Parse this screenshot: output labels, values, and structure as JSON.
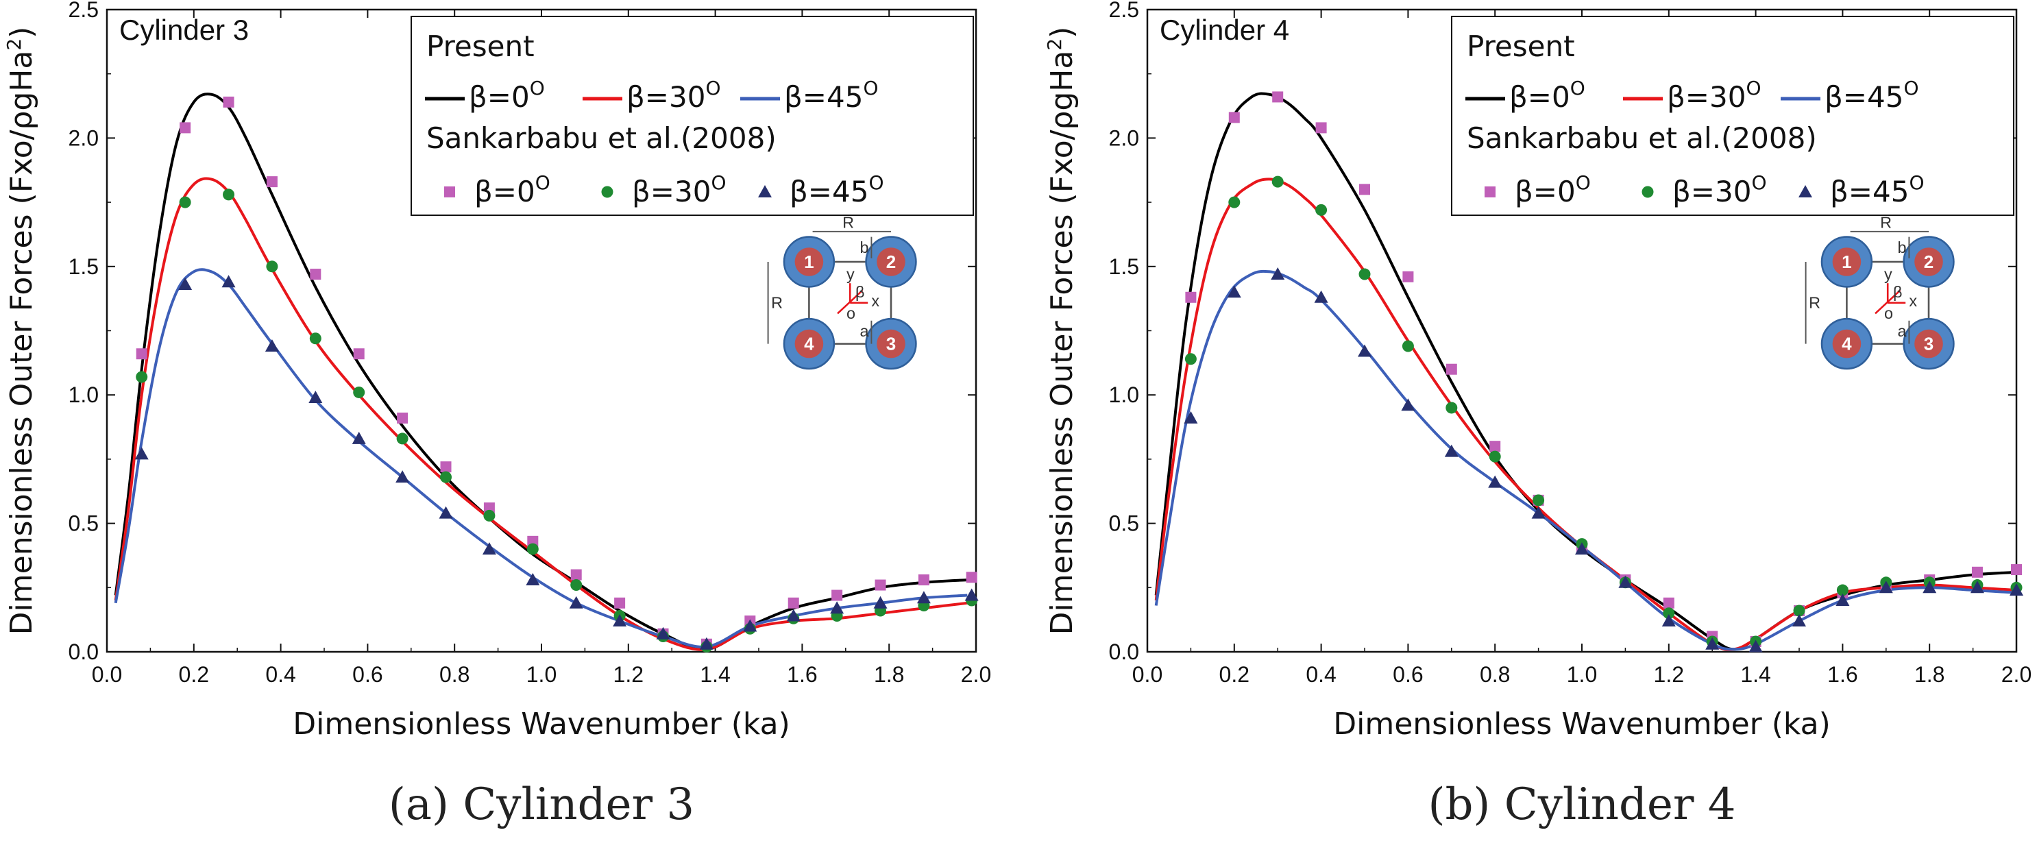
{
  "colors": {
    "black_line": "#000000",
    "red_line": "#e8161b",
    "blue_line": "#3d5fb8",
    "marker_square": "#c05fb8",
    "marker_circle": "#1f8a32",
    "marker_triangle": "#27306e",
    "cyl_outer": "#4f86c6",
    "cyl_inner": "#c0504d"
  },
  "chart_data": [
    {
      "type": "line",
      "panel_label": "Cylinder 3",
      "caption": "(a)  Cylinder  3",
      "xlabel": "Dimensionless Wavenumber (ka)",
      "ylabel_main": "Dimensionless Outer Forces (Fxo/ρgHa",
      "ylabel_sup": "2",
      "ylabel_end": ")",
      "xlim": [
        0,
        2.0
      ],
      "ylim": [
        0,
        2.5
      ],
      "xticks": [
        "0.0",
        "0.2",
        "0.4",
        "0.6",
        "0.8",
        "1.0",
        "1.2",
        "1.4",
        "1.6",
        "1.8",
        "2.0"
      ],
      "yticks": [
        "0.0",
        "0.5",
        "1.0",
        "1.5",
        "2.0",
        "2.5"
      ],
      "legend": {
        "title_present": "Present",
        "title_ref": "Sankarbabu et al.(2008)",
        "entries": [
          "β=0",
          "β=30",
          "β=45"
        ],
        "degree": "O"
      },
      "series": [
        {
          "name": "Present β=0°",
          "style": "line",
          "color": "#000000",
          "x": [
            0.02,
            0.05,
            0.08,
            0.12,
            0.16,
            0.2,
            0.24,
            0.28,
            0.32,
            0.38,
            0.48,
            0.58,
            0.68,
            0.78,
            0.88,
            0.98,
            1.08,
            1.18,
            1.28,
            1.38,
            1.48,
            1.58,
            1.68,
            1.78,
            1.88,
            1.98
          ],
          "values": [
            0.22,
            0.62,
            1.1,
            1.62,
            1.98,
            2.14,
            2.17,
            2.12,
            2.0,
            1.78,
            1.42,
            1.12,
            0.88,
            0.68,
            0.52,
            0.38,
            0.27,
            0.16,
            0.07,
            0.01,
            0.1,
            0.17,
            0.21,
            0.25,
            0.27,
            0.28
          ]
        },
        {
          "name": "Present β=30°",
          "style": "line",
          "color": "#e8161b",
          "x": [
            0.02,
            0.05,
            0.08,
            0.12,
            0.16,
            0.2,
            0.24,
            0.28,
            0.32,
            0.38,
            0.48,
            0.58,
            0.68,
            0.78,
            0.88,
            0.98,
            1.08,
            1.18,
            1.28,
            1.38,
            1.48,
            1.58,
            1.68,
            1.78,
            1.88,
            1.98
          ],
          "values": [
            0.2,
            0.56,
            1.0,
            1.42,
            1.7,
            1.82,
            1.84,
            1.79,
            1.68,
            1.49,
            1.21,
            1.0,
            0.82,
            0.66,
            0.52,
            0.39,
            0.26,
            0.14,
            0.05,
            0.01,
            0.09,
            0.12,
            0.13,
            0.15,
            0.17,
            0.19
          ]
        },
        {
          "name": "Present β=45°",
          "style": "line",
          "color": "#3d5fb8",
          "x": [
            0.02,
            0.05,
            0.08,
            0.12,
            0.16,
            0.2,
            0.24,
            0.28,
            0.32,
            0.38,
            0.48,
            0.58,
            0.68,
            0.78,
            0.88,
            0.98,
            1.08,
            1.18,
            1.28,
            1.38,
            1.48,
            1.58,
            1.68,
            1.78,
            1.88,
            1.98
          ],
          "values": [
            0.19,
            0.48,
            0.82,
            1.18,
            1.4,
            1.48,
            1.48,
            1.43,
            1.34,
            1.2,
            0.98,
            0.82,
            0.68,
            0.54,
            0.41,
            0.29,
            0.19,
            0.12,
            0.06,
            0.02,
            0.1,
            0.14,
            0.17,
            0.19,
            0.21,
            0.22
          ]
        },
        {
          "name": "Sankarbabu β=0°",
          "style": "square",
          "color": "#c05fb8",
          "x": [
            0.08,
            0.18,
            0.28,
            0.38,
            0.48,
            0.58,
            0.68,
            0.78,
            0.88,
            0.98,
            1.08,
            1.18,
            1.28,
            1.38,
            1.48,
            1.58,
            1.68,
            1.78,
            1.88,
            1.99
          ],
          "values": [
            1.16,
            2.04,
            2.14,
            1.83,
            1.47,
            1.16,
            0.91,
            0.72,
            0.56,
            0.43,
            0.3,
            0.19,
            0.07,
            0.03,
            0.12,
            0.19,
            0.22,
            0.26,
            0.28,
            0.29
          ]
        },
        {
          "name": "Sankarbabu β=30°",
          "style": "circle",
          "color": "#1f8a32",
          "x": [
            0.08,
            0.18,
            0.28,
            0.38,
            0.48,
            0.58,
            0.68,
            0.78,
            0.88,
            0.98,
            1.08,
            1.18,
            1.28,
            1.38,
            1.48,
            1.58,
            1.68,
            1.78,
            1.88,
            1.99
          ],
          "values": [
            1.07,
            1.75,
            1.78,
            1.5,
            1.22,
            1.01,
            0.83,
            0.68,
            0.53,
            0.4,
            0.26,
            0.14,
            0.06,
            0.02,
            0.09,
            0.13,
            0.14,
            0.16,
            0.18,
            0.2
          ]
        },
        {
          "name": "Sankarbabu β=45°",
          "style": "triangle",
          "color": "#27306e",
          "x": [
            0.08,
            0.18,
            0.28,
            0.38,
            0.48,
            0.58,
            0.68,
            0.78,
            0.88,
            0.98,
            1.08,
            1.18,
            1.28,
            1.38,
            1.48,
            1.58,
            1.68,
            1.78,
            1.88,
            1.99
          ],
          "values": [
            0.77,
            1.43,
            1.44,
            1.19,
            0.99,
            0.83,
            0.68,
            0.54,
            0.4,
            0.28,
            0.19,
            0.12,
            0.07,
            0.03,
            0.1,
            0.14,
            0.17,
            0.19,
            0.21,
            0.22
          ]
        }
      ],
      "inset": {
        "labels": [
          "1",
          "2",
          "3",
          "4"
        ],
        "R": "R",
        "a": "a",
        "b": "b",
        "x": "x",
        "y": "y",
        "o": "o",
        "beta": "β"
      }
    },
    {
      "type": "line",
      "panel_label": "Cylinder 4",
      "caption": "(b)  Cylinder  4",
      "xlabel": "Dimensionless Wavenumber (ka)",
      "ylabel_main": "Dimensionless Outer Forces (Fxo/ρgHa",
      "ylabel_sup": "2",
      "ylabel_end": ")",
      "xlim": [
        0,
        2.0
      ],
      "ylim": [
        0,
        2.5
      ],
      "xticks": [
        "0.0",
        "0.2",
        "0.4",
        "0.6",
        "0.8",
        "1.0",
        "1.2",
        "1.4",
        "1.6",
        "1.8",
        "2.0"
      ],
      "yticks": [
        "0.0",
        "0.5",
        "1.0",
        "1.5",
        "2.0",
        "2.5"
      ],
      "legend": {
        "title_present": "Present",
        "title_ref": "Sankarbabu et al.(2008)",
        "entries": [
          "β=0",
          "β=30",
          "β=45"
        ],
        "degree": "O"
      },
      "series": [
        {
          "name": "Present β=0°",
          "style": "line",
          "color": "#000000",
          "x": [
            0.02,
            0.05,
            0.09,
            0.14,
            0.19,
            0.24,
            0.28,
            0.32,
            0.36,
            0.4,
            0.5,
            0.6,
            0.7,
            0.8,
            0.9,
            1.0,
            1.1,
            1.2,
            1.3,
            1.35,
            1.4,
            1.5,
            1.6,
            1.7,
            1.8,
            1.9,
            2.0
          ],
          "values": [
            0.22,
            0.7,
            1.3,
            1.8,
            2.06,
            2.16,
            2.17,
            2.14,
            2.08,
            2.0,
            1.72,
            1.38,
            1.05,
            0.76,
            0.55,
            0.4,
            0.28,
            0.17,
            0.05,
            0.01,
            0.05,
            0.16,
            0.22,
            0.26,
            0.28,
            0.3,
            0.31
          ]
        },
        {
          "name": "Present β=30°",
          "style": "line",
          "color": "#e8161b",
          "x": [
            0.02,
            0.05,
            0.09,
            0.14,
            0.19,
            0.24,
            0.28,
            0.32,
            0.36,
            0.4,
            0.5,
            0.6,
            0.7,
            0.8,
            0.9,
            1.0,
            1.1,
            1.2,
            1.3,
            1.35,
            1.4,
            1.5,
            1.6,
            1.7,
            1.8,
            1.9,
            2.0
          ],
          "values": [
            0.2,
            0.62,
            1.1,
            1.52,
            1.74,
            1.82,
            1.84,
            1.82,
            1.77,
            1.7,
            1.48,
            1.21,
            0.96,
            0.74,
            0.56,
            0.41,
            0.28,
            0.15,
            0.03,
            0.01,
            0.05,
            0.16,
            0.23,
            0.25,
            0.26,
            0.25,
            0.24
          ]
        },
        {
          "name": "Present β=45°",
          "style": "line",
          "color": "#3d5fb8",
          "x": [
            0.02,
            0.05,
            0.09,
            0.14,
            0.19,
            0.24,
            0.28,
            0.32,
            0.36,
            0.4,
            0.5,
            0.6,
            0.7,
            0.8,
            0.9,
            1.0,
            1.1,
            1.2,
            1.3,
            1.35,
            1.4,
            1.5,
            1.6,
            1.7,
            1.8,
            1.9,
            2.0
          ],
          "values": [
            0.18,
            0.5,
            0.9,
            1.22,
            1.4,
            1.47,
            1.48,
            1.46,
            1.42,
            1.37,
            1.18,
            0.97,
            0.79,
            0.66,
            0.54,
            0.41,
            0.27,
            0.13,
            0.03,
            0.01,
            0.03,
            0.12,
            0.2,
            0.24,
            0.25,
            0.24,
            0.23
          ]
        },
        {
          "name": "Sankarbabu β=0°",
          "style": "square",
          "color": "#c05fb8",
          "x": [
            0.1,
            0.2,
            0.3,
            0.4,
            0.5,
            0.6,
            0.7,
            0.8,
            0.9,
            1.0,
            1.1,
            1.2,
            1.3,
            1.4,
            1.5,
            1.6,
            1.7,
            1.8,
            1.91,
            2.0
          ],
          "values": [
            1.38,
            2.08,
            2.16,
            2.04,
            1.8,
            1.46,
            1.1,
            0.8,
            0.59,
            0.41,
            0.28,
            0.19,
            0.06,
            0.04,
            0.16,
            0.23,
            0.26,
            0.28,
            0.31,
            0.32
          ]
        },
        {
          "name": "Sankarbabu β=30°",
          "style": "circle",
          "color": "#1f8a32",
          "x": [
            0.1,
            0.2,
            0.3,
            0.4,
            0.5,
            0.6,
            0.7,
            0.8,
            0.9,
            1.0,
            1.1,
            1.2,
            1.3,
            1.4,
            1.5,
            1.6,
            1.7,
            1.8,
            1.91,
            2.0
          ],
          "values": [
            1.14,
            1.75,
            1.83,
            1.72,
            1.47,
            1.19,
            0.95,
            0.76,
            0.59,
            0.42,
            0.27,
            0.15,
            0.04,
            0.04,
            0.16,
            0.24,
            0.27,
            0.27,
            0.26,
            0.25
          ]
        },
        {
          "name": "Sankarbabu β=45°",
          "style": "triangle",
          "color": "#27306e",
          "x": [
            0.1,
            0.2,
            0.3,
            0.4,
            0.5,
            0.6,
            0.7,
            0.8,
            0.9,
            1.0,
            1.1,
            1.2,
            1.3,
            1.4,
            1.5,
            1.6,
            1.7,
            1.8,
            1.91,
            2.0
          ],
          "values": [
            0.91,
            1.4,
            1.47,
            1.38,
            1.17,
            0.96,
            0.78,
            0.66,
            0.54,
            0.4,
            0.27,
            0.12,
            0.03,
            0.02,
            0.12,
            0.2,
            0.25,
            0.25,
            0.25,
            0.24
          ]
        }
      ],
      "inset": {
        "labels": [
          "1",
          "2",
          "3",
          "4"
        ],
        "R": "R",
        "a": "a",
        "b": "b",
        "x": "x",
        "y": "y",
        "o": "o",
        "beta": "β"
      }
    }
  ]
}
